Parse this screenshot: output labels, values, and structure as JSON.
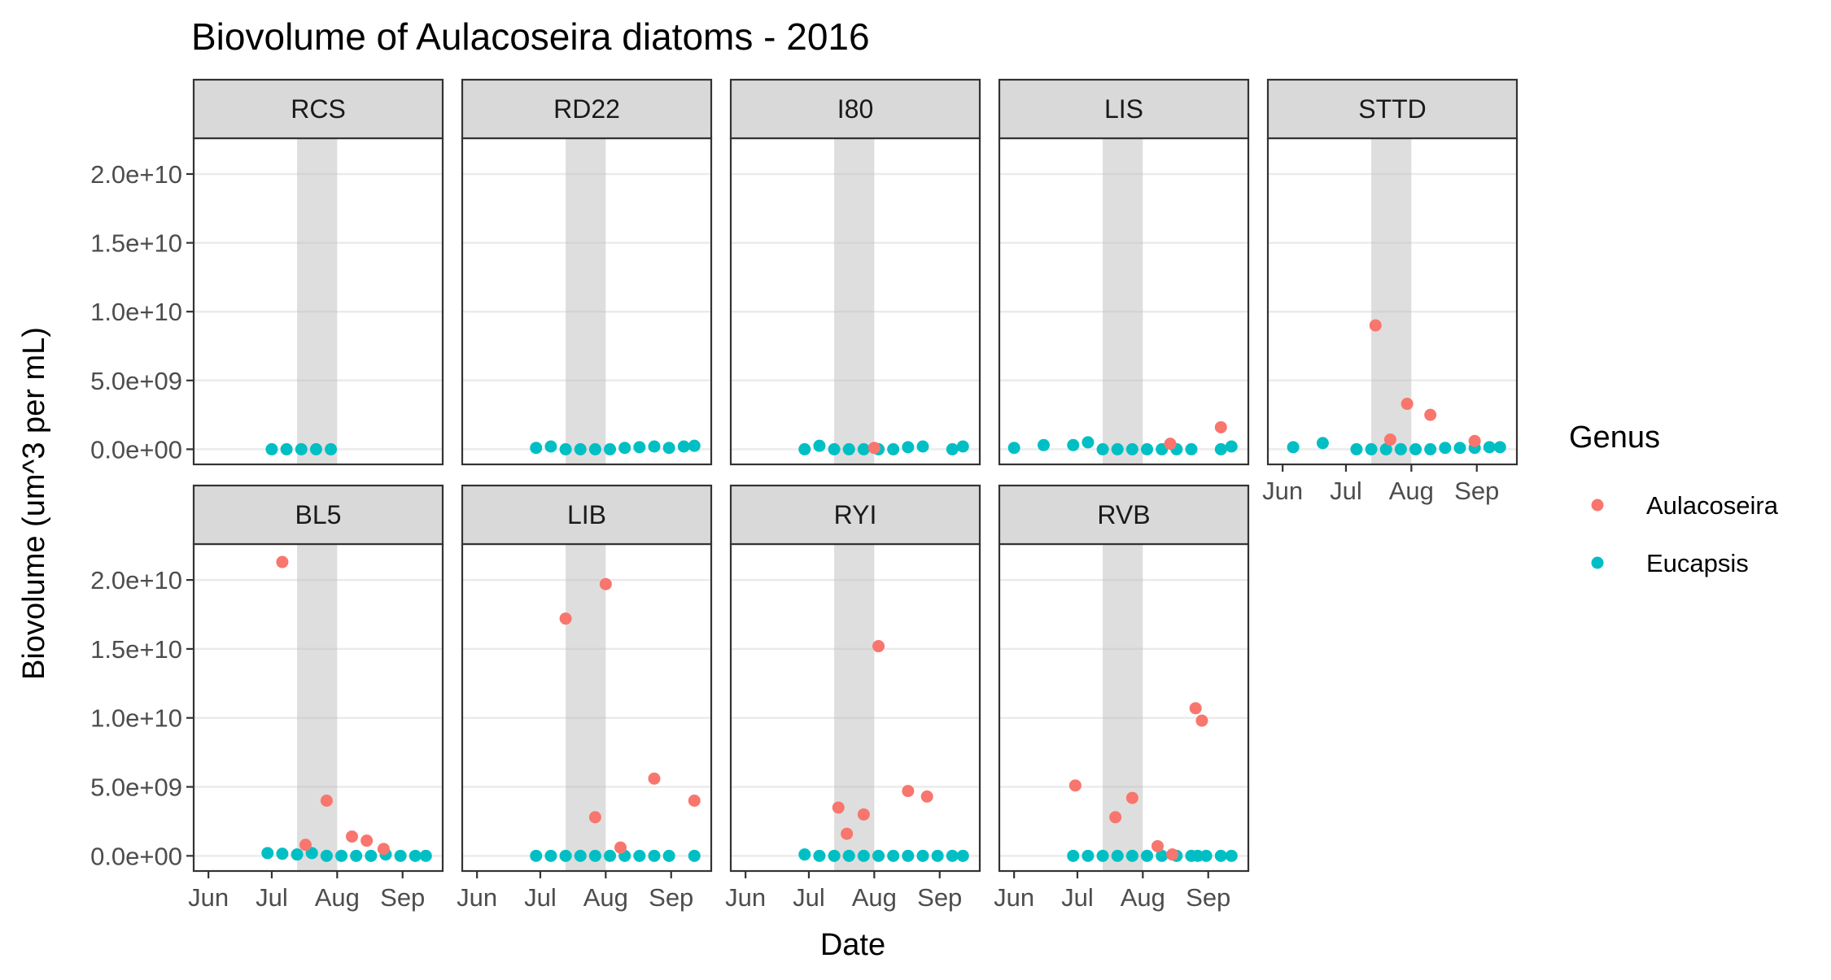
{
  "chart_data": {
    "type": "scatter",
    "title": "Biovolume of Aulacoseira diatoms - 2016",
    "xlabel": "Date",
    "ylabel": "Biovolume (um^3 per mL)",
    "legend_title": "Genus",
    "legend_position": "right",
    "grid": true,
    "xlim": [
      "2016-05-25",
      "2016-09-20"
    ],
    "ylim": [
      -1100000000.0,
      22600000000.0
    ],
    "x_ticks": [
      {
        "date": "2016-06-01",
        "label": "Jun"
      },
      {
        "date": "2016-07-01",
        "label": "Jul"
      },
      {
        "date": "2016-08-01",
        "label": "Aug"
      },
      {
        "date": "2016-09-01",
        "label": "Sep"
      }
    ],
    "y_ticks": [
      {
        "value": 0,
        "label": "0.0e+00"
      },
      {
        "value": 5000000000.0,
        "label": "5.0e+09"
      },
      {
        "value": 10000000000.0,
        "label": "1.0e+10"
      },
      {
        "value": 15000000000.0,
        "label": "1.5e+10"
      },
      {
        "value": 20000000000.0,
        "label": "2.0e+10"
      }
    ],
    "shaded_period": [
      "2016-07-13",
      "2016-08-01"
    ],
    "series": [
      {
        "name": "Aulacoseira",
        "color": "#F8766D"
      },
      {
        "name": "Eucapsis",
        "color": "#00BFC4"
      }
    ],
    "panels": [
      {
        "name": "RCS",
        "Eucapsis": [
          [
            "2016-07-01",
            0
          ],
          [
            "2016-07-08",
            0
          ],
          [
            "2016-07-15",
            0
          ],
          [
            "2016-07-22",
            0
          ],
          [
            "2016-07-29",
            0
          ]
        ],
        "Aulacoseira": []
      },
      {
        "name": "RD22",
        "Eucapsis": [
          [
            "2016-06-29",
            100000000.0
          ],
          [
            "2016-07-06",
            200000000.0
          ],
          [
            "2016-07-13",
            0
          ],
          [
            "2016-07-20",
            0
          ],
          [
            "2016-07-27",
            0
          ],
          [
            "2016-08-03",
            0
          ],
          [
            "2016-08-10",
            100000000.0
          ],
          [
            "2016-08-17",
            150000000.0
          ],
          [
            "2016-08-24",
            200000000.0
          ],
          [
            "2016-08-31",
            100000000.0
          ],
          [
            "2016-09-07",
            200000000.0
          ],
          [
            "2016-09-12",
            250000000.0
          ]
        ],
        "Aulacoseira": []
      },
      {
        "name": "I80",
        "Eucapsis": [
          [
            "2016-06-29",
            0
          ],
          [
            "2016-07-06",
            250000000.0
          ],
          [
            "2016-07-13",
            0
          ],
          [
            "2016-07-20",
            0
          ],
          [
            "2016-07-27",
            0
          ],
          [
            "2016-08-03",
            0
          ],
          [
            "2016-08-10",
            0
          ],
          [
            "2016-08-17",
            150000000.0
          ],
          [
            "2016-08-24",
            200000000.0
          ],
          [
            "2016-09-07",
            0
          ],
          [
            "2016-09-12",
            200000000.0
          ]
        ],
        "Aulacoseira": [
          [
            "2016-08-01",
            100000000.0
          ]
        ]
      },
      {
        "name": "LIS",
        "Eucapsis": [
          [
            "2016-06-01",
            100000000.0
          ],
          [
            "2016-06-15",
            300000000.0
          ],
          [
            "2016-06-29",
            300000000.0
          ],
          [
            "2016-07-06",
            500000000.0
          ],
          [
            "2016-07-13",
            0
          ],
          [
            "2016-07-20",
            0
          ],
          [
            "2016-07-27",
            0
          ],
          [
            "2016-08-03",
            0
          ],
          [
            "2016-08-10",
            0
          ],
          [
            "2016-08-17",
            0
          ],
          [
            "2016-08-24",
            0
          ],
          [
            "2016-09-07",
            0
          ],
          [
            "2016-09-12",
            200000000.0
          ]
        ],
        "Aulacoseira": [
          [
            "2016-08-14",
            400000000.0
          ],
          [
            "2016-09-07",
            1600000000.0
          ]
        ]
      },
      {
        "name": "STTD",
        "Eucapsis": [
          [
            "2016-06-06",
            150000000.0
          ],
          [
            "2016-06-20",
            450000000.0
          ],
          [
            "2016-07-06",
            0
          ],
          [
            "2016-07-13",
            0
          ],
          [
            "2016-07-20",
            0
          ],
          [
            "2016-07-27",
            0
          ],
          [
            "2016-08-03",
            0
          ],
          [
            "2016-08-10",
            0
          ],
          [
            "2016-08-17",
            100000000.0
          ],
          [
            "2016-08-24",
            100000000.0
          ],
          [
            "2016-08-31",
            100000000.0
          ],
          [
            "2016-09-07",
            150000000.0
          ],
          [
            "2016-09-12",
            150000000.0
          ]
        ],
        "Aulacoseira": [
          [
            "2016-07-15",
            9000000000.0
          ],
          [
            "2016-07-22",
            700000000.0
          ],
          [
            "2016-07-30",
            3300000000.0
          ],
          [
            "2016-08-10",
            2500000000.0
          ],
          [
            "2016-08-31",
            600000000.0
          ]
        ]
      },
      {
        "name": "BL5",
        "Eucapsis": [
          [
            "2016-06-29",
            200000000.0
          ],
          [
            "2016-07-06",
            150000000.0
          ],
          [
            "2016-07-13",
            100000000.0
          ],
          [
            "2016-07-20",
            200000000.0
          ],
          [
            "2016-07-27",
            0
          ],
          [
            "2016-08-03",
            0
          ],
          [
            "2016-08-10",
            0
          ],
          [
            "2016-08-17",
            0
          ],
          [
            "2016-08-24",
            100000000.0
          ],
          [
            "2016-08-31",
            0
          ],
          [
            "2016-09-07",
            0
          ],
          [
            "2016-09-12",
            0
          ]
        ],
        "Aulacoseira": [
          [
            "2016-07-06",
            21300000000.0
          ],
          [
            "2016-07-17",
            800000000.0
          ],
          [
            "2016-07-27",
            4000000000.0
          ],
          [
            "2016-08-08",
            1400000000.0
          ],
          [
            "2016-08-15",
            1100000000.0
          ],
          [
            "2016-08-23",
            500000000.0
          ]
        ]
      },
      {
        "name": "LIB",
        "Eucapsis": [
          [
            "2016-06-29",
            0
          ],
          [
            "2016-07-06",
            0
          ],
          [
            "2016-07-13",
            0
          ],
          [
            "2016-07-20",
            0
          ],
          [
            "2016-07-27",
            0
          ],
          [
            "2016-08-03",
            0
          ],
          [
            "2016-08-10",
            0
          ],
          [
            "2016-08-17",
            0
          ],
          [
            "2016-08-24",
            0
          ],
          [
            "2016-08-31",
            0
          ],
          [
            "2016-09-12",
            0
          ]
        ],
        "Aulacoseira": [
          [
            "2016-07-13",
            17200000000.0
          ],
          [
            "2016-07-27",
            2800000000.0
          ],
          [
            "2016-08-01",
            19700000000.0
          ],
          [
            "2016-08-08",
            600000000.0
          ],
          [
            "2016-08-24",
            5600000000.0
          ],
          [
            "2016-09-12",
            4000000000.0
          ]
        ]
      },
      {
        "name": "RYI",
        "Eucapsis": [
          [
            "2016-06-29",
            100000000.0
          ],
          [
            "2016-07-06",
            0
          ],
          [
            "2016-07-13",
            0
          ],
          [
            "2016-07-20",
            0
          ],
          [
            "2016-07-27",
            0
          ],
          [
            "2016-08-03",
            0
          ],
          [
            "2016-08-10",
            0
          ],
          [
            "2016-08-17",
            0
          ],
          [
            "2016-08-24",
            0
          ],
          [
            "2016-08-31",
            0
          ],
          [
            "2016-09-07",
            0
          ],
          [
            "2016-09-12",
            0
          ]
        ],
        "Aulacoseira": [
          [
            "2016-07-15",
            3500000000.0
          ],
          [
            "2016-07-19",
            1600000000.0
          ],
          [
            "2016-07-27",
            3000000000.0
          ],
          [
            "2016-08-03",
            15200000000.0
          ],
          [
            "2016-08-17",
            4700000000.0
          ],
          [
            "2016-08-26",
            4300000000.0
          ]
        ]
      },
      {
        "name": "RVB",
        "Eucapsis": [
          [
            "2016-06-29",
            0
          ],
          [
            "2016-07-06",
            0
          ],
          [
            "2016-07-13",
            0
          ],
          [
            "2016-07-20",
            0
          ],
          [
            "2016-07-27",
            0
          ],
          [
            "2016-08-03",
            0
          ],
          [
            "2016-08-10",
            0
          ],
          [
            "2016-08-17",
            0
          ],
          [
            "2016-08-24",
            0
          ],
          [
            "2016-08-27",
            0
          ],
          [
            "2016-08-31",
            0
          ],
          [
            "2016-09-07",
            0
          ],
          [
            "2016-09-12",
            0
          ]
        ],
        "Aulacoseira": [
          [
            "2016-06-30",
            5100000000.0
          ],
          [
            "2016-07-19",
            2800000000.0
          ],
          [
            "2016-07-27",
            4200000000.0
          ],
          [
            "2016-08-08",
            700000000.0
          ],
          [
            "2016-08-15",
            100000000.0
          ],
          [
            "2016-08-26",
            10700000000.0
          ],
          [
            "2016-08-29",
            9800000000.0
          ]
        ]
      }
    ]
  }
}
